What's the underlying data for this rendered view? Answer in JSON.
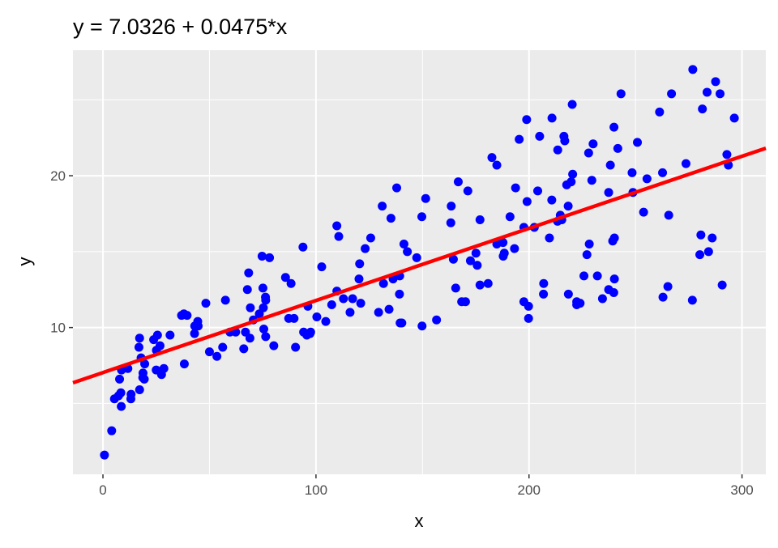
{
  "chart_data": {
    "type": "scatter",
    "title": "y = 7.0326 + 0.0475*x",
    "xlabel": "x",
    "ylabel": "y",
    "xlim": [
      -14.09,
      311.19
    ],
    "ylim": [
      0.33,
      28.27
    ],
    "xticks": [
      0,
      100,
      200,
      300
    ],
    "yticks": [
      10,
      20
    ],
    "grid": true,
    "point_color": "#0000FF",
    "line_color": "#FF0000",
    "panel_background": "#EBEBEB",
    "regression": {
      "intercept": 7.0326,
      "slope": 0.0475
    },
    "x": [
      230.1,
      44.5,
      17.2,
      151.5,
      180.8,
      8.7,
      57.5,
      120.2,
      8.6,
      199.8,
      66.1,
      214.7,
      23.8,
      97.5,
      204.1,
      195.4,
      67.8,
      281.4,
      69.2,
      147.3,
      218.4,
      237.4,
      13.2,
      228.3,
      62.3,
      262.9,
      142.9,
      240.1,
      248.8,
      70.6,
      292.9,
      112.9,
      97.2,
      265.6,
      95.7,
      290.7,
      266.9,
      74.7,
      43.1,
      228,
      202.5,
      177,
      293.6,
      206.9,
      25.1,
      175.1,
      89.7,
      239.9,
      227.2,
      66.9,
      199.8,
      100.4,
      216.4,
      182.6,
      262.7,
      198.9,
      7.3,
      136.2,
      210.8,
      210.7,
      53.5,
      261.3,
      239.3,
      102.7,
      131.1,
      69,
      31.5,
      139.3,
      237.4,
      216.8,
      199.1,
      109.8,
      26.8,
      129.4,
      213.4,
      16.9,
      27.5,
      120.5,
      5.4,
      116,
      76.4,
      239.8,
      75.3,
      68.4,
      213.5,
      193.2,
      76.3,
      110.7,
      88.3,
      109.8,
      134.3,
      28.6,
      217.7,
      250.9,
      107.4,
      163.3,
      197.6,
      184.9,
      289.7,
      135.2,
      222.4,
      296.4,
      280.2,
      187.9,
      238.2,
      137.9,
      25,
      90.4,
      13.1,
      255.4,
      225.8,
      241.7,
      175.7,
      209.6,
      78.2,
      75.1,
      139.2,
      76.4,
      125.7,
      19.4,
      141.3,
      18.8,
      224,
      123.1,
      229.5,
      87.2,
      7.8,
      80.2,
      220.3,
      59.6,
      0.7,
      265.2,
      8.4,
      219.8,
      36.9,
      48.3,
      25.6,
      273.7,
      43,
      184.9,
      73.4,
      193.7,
      220.5,
      104.6,
      96.2,
      140.3,
      240.1,
      243.2,
      38,
      44.7,
      280.7,
      121,
      197.6,
      171.3,
      187.8,
      4.1,
      93.9,
      149.8,
      11.7,
      131.7,
      172.5,
      85.7,
      188.4,
      163.5,
      117.2,
      234.5,
      17.9,
      206.8,
      215.4,
      284.3,
      50,
      164.5,
      19.6,
      168.4,
      222.4,
      276.9,
      248.4,
      170.2,
      276.7,
      165.6,
      156.6,
      218.5,
      56.2,
      287.6,
      253.8,
      205,
      139.5,
      191.1,
      286,
      18.7,
      39.5,
      75.5,
      17.2,
      166.8,
      149.7,
      38.2,
      94.2,
      177,
      283.6,
      232.1
    ],
    "y": [
      22.1,
      10.4,
      9.3,
      18.5,
      12.9,
      7.2,
      11.8,
      13.2,
      4.8,
      10.6,
      8.6,
      17.4,
      9.2,
      9.7,
      19,
      22.4,
      12.5,
      24.4,
      11.3,
      14.6,
      18,
      12.5,
      5.6,
      15.5,
      9.7,
      12,
      15,
      15.9,
      18.9,
      10.5,
      21.4,
      11.9,
      9.6,
      17.4,
      9.5,
      12.8,
      25.4,
      14.7,
      10.1,
      21.5,
      16.6,
      17.1,
      20.7,
      12.9,
      8.5,
      14.9,
      10.6,
      23.2,
      14.8,
      9.7,
      11.4,
      10.7,
      22.6,
      21.2,
      20.2,
      23.7,
      5.5,
      13.2,
      23.8,
      18.4,
      8.1,
      24.2,
      15.7,
      14,
      18,
      9.3,
      9.5,
      13.4,
      18.9,
      22.3,
      18.3,
      12.4,
      8.8,
      11,
      17,
      8.7,
      6.9,
      14.2,
      5.3,
      11,
      11.8,
      12.3,
      11.3,
      13.6,
      21.7,
      15.2,
      12,
      16,
      12.9,
      16.7,
      11.2,
      7.3,
      19.4,
      22.2,
      11.5,
      16.9,
      11.7,
      15.5,
      25.4,
      17.2,
      11.7,
      23.8,
      14.8,
      14.7,
      20.7,
      19.2,
      7.2,
      8.7,
      5.3,
      19.8,
      13.4,
      21.8,
      14.1,
      15.9,
      14.6,
      12.6,
      12.2,
      9.4,
      15.9,
      6.6,
      15.5,
      7,
      11.6,
      15.2,
      19.7,
      10.6,
      6.6,
      8.8,
      24.7,
      9.7,
      1.6,
      12.7,
      5.7,
      19.6,
      10.8,
      11.6,
      9.5,
      20.8,
      9.6,
      20.7,
      10.9,
      19.2,
      20.1,
      10.4,
      11.4,
      10.3,
      13.2,
      25.4,
      10.9,
      10.1,
      16.1,
      11.6,
      16.6,
      19,
      15.6,
      3.2,
      15.3,
      10.1,
      7.3,
      12.9,
      14.4,
      13.3,
      14.9,
      18,
      11.9,
      11.9,
      8,
      12.2,
      17.1,
      15,
      8.4,
      14.5,
      7.6,
      11.7,
      11.5,
      27,
      20.2,
      11.7,
      11.8,
      12.6,
      10.5,
      12.2,
      8.7,
      26.2,
      17.6,
      22.6,
      10.3,
      17.3,
      15.9,
      6.7,
      10.8,
      9.9,
      5.9,
      19.6,
      17.3,
      7.6,
      9.7,
      12.8,
      25.5,
      13.4
    ]
  }
}
